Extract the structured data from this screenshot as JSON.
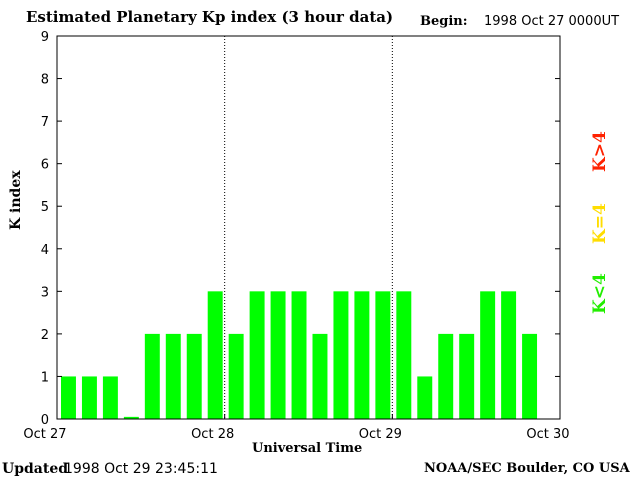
{
  "header": {
    "title": "Estimated Planetary Kp index (3 hour data)",
    "begin_label": "Begin:",
    "begin_value": "1998 Oct 27 0000UT"
  },
  "footer": {
    "updated_label": "Updated",
    "updated_value": "1998 Oct 29 23:45:11",
    "credit": "NOAA/SEC Boulder, CO USA"
  },
  "legend": {
    "high": "K>4",
    "mid": "K=4",
    "low": "K<4",
    "colors": {
      "high": "#ff2200",
      "mid": "#ffdd00",
      "low": "#00ff00"
    }
  },
  "chart_data": {
    "type": "bar",
    "title": "Estimated Planetary Kp index (3 hour data)",
    "xlabel": "Universal Time",
    "ylabel": "K index",
    "ylim": [
      0,
      9
    ],
    "yticks": [
      "0",
      "1",
      "2",
      "3",
      "4",
      "5",
      "6",
      "7",
      "8",
      "9"
    ],
    "xticks": [
      "Oct 27",
      "Oct 28",
      "Oct 29",
      "Oct 30"
    ],
    "day_separators": [
      "Oct 28",
      "Oct 29"
    ],
    "bar_color": "#00ff00",
    "categories": [
      "Oct 27 00-03",
      "Oct 27 03-06",
      "Oct 27 06-09",
      "Oct 27 09-12",
      "Oct 27 12-15",
      "Oct 27 15-18",
      "Oct 27 18-21",
      "Oct 27 21-24",
      "Oct 28 00-03",
      "Oct 28 03-06",
      "Oct 28 06-09",
      "Oct 28 09-12",
      "Oct 28 12-15",
      "Oct 28 15-18",
      "Oct 28 18-21",
      "Oct 28 21-24",
      "Oct 29 00-03",
      "Oct 29 03-06",
      "Oct 29 06-09",
      "Oct 29 09-12",
      "Oct 29 12-15",
      "Oct 29 15-18",
      "Oct 29 18-21",
      "Oct 29 21-24"
    ],
    "values": [
      1,
      1,
      1,
      0.05,
      2,
      2,
      2,
      3,
      2,
      3,
      3,
      3,
      2,
      3,
      3,
      3,
      3,
      1,
      2,
      2,
      3,
      3,
      2,
      null
    ]
  }
}
